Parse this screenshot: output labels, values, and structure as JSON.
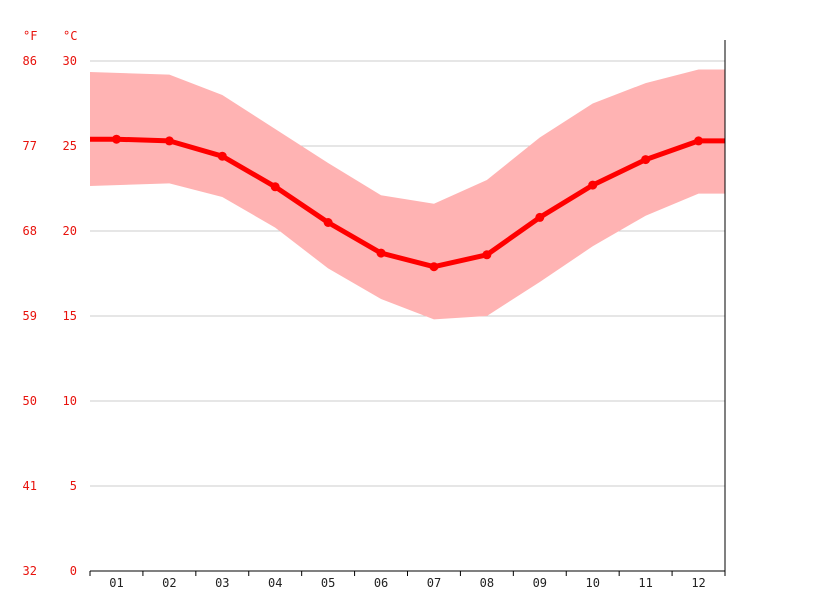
{
  "chart_data": {
    "type": "area",
    "unit_left_label": "°F",
    "unit_right_label": "°C",
    "categories": [
      "01",
      "02",
      "03",
      "04",
      "05",
      "06",
      "07",
      "08",
      "09",
      "10",
      "11",
      "12"
    ],
    "yticks_c": [
      0,
      5,
      10,
      15,
      20,
      25,
      30
    ],
    "yticks_f": [
      32,
      41,
      50,
      59,
      68,
      77,
      86
    ],
    "ylim": [
      0,
      30
    ],
    "grid": true,
    "series": [
      {
        "values": [
          25.4,
          25.3,
          24.4,
          22.6,
          20.5,
          18.7,
          17.9,
          18.6,
          20.8,
          22.7,
          24.2,
          25.3
        ]
      },
      {
        "values": [
          29.3,
          29.2,
          28.0,
          26.0,
          24.0,
          22.1,
          21.6,
          23.0,
          25.5,
          27.5,
          28.7,
          29.5
        ]
      },
      {
        "values": [
          22.7,
          22.8,
          22.0,
          20.2,
          17.8,
          16.0,
          14.8,
          15.0,
          17.0,
          19.1,
          20.9,
          22.2
        ]
      }
    ],
    "colors": {
      "line": "#ff0000",
      "band": "#ffb3b3",
      "ytick": "#e8120c",
      "grid": "#cccccc",
      "axis": "#000000"
    }
  }
}
